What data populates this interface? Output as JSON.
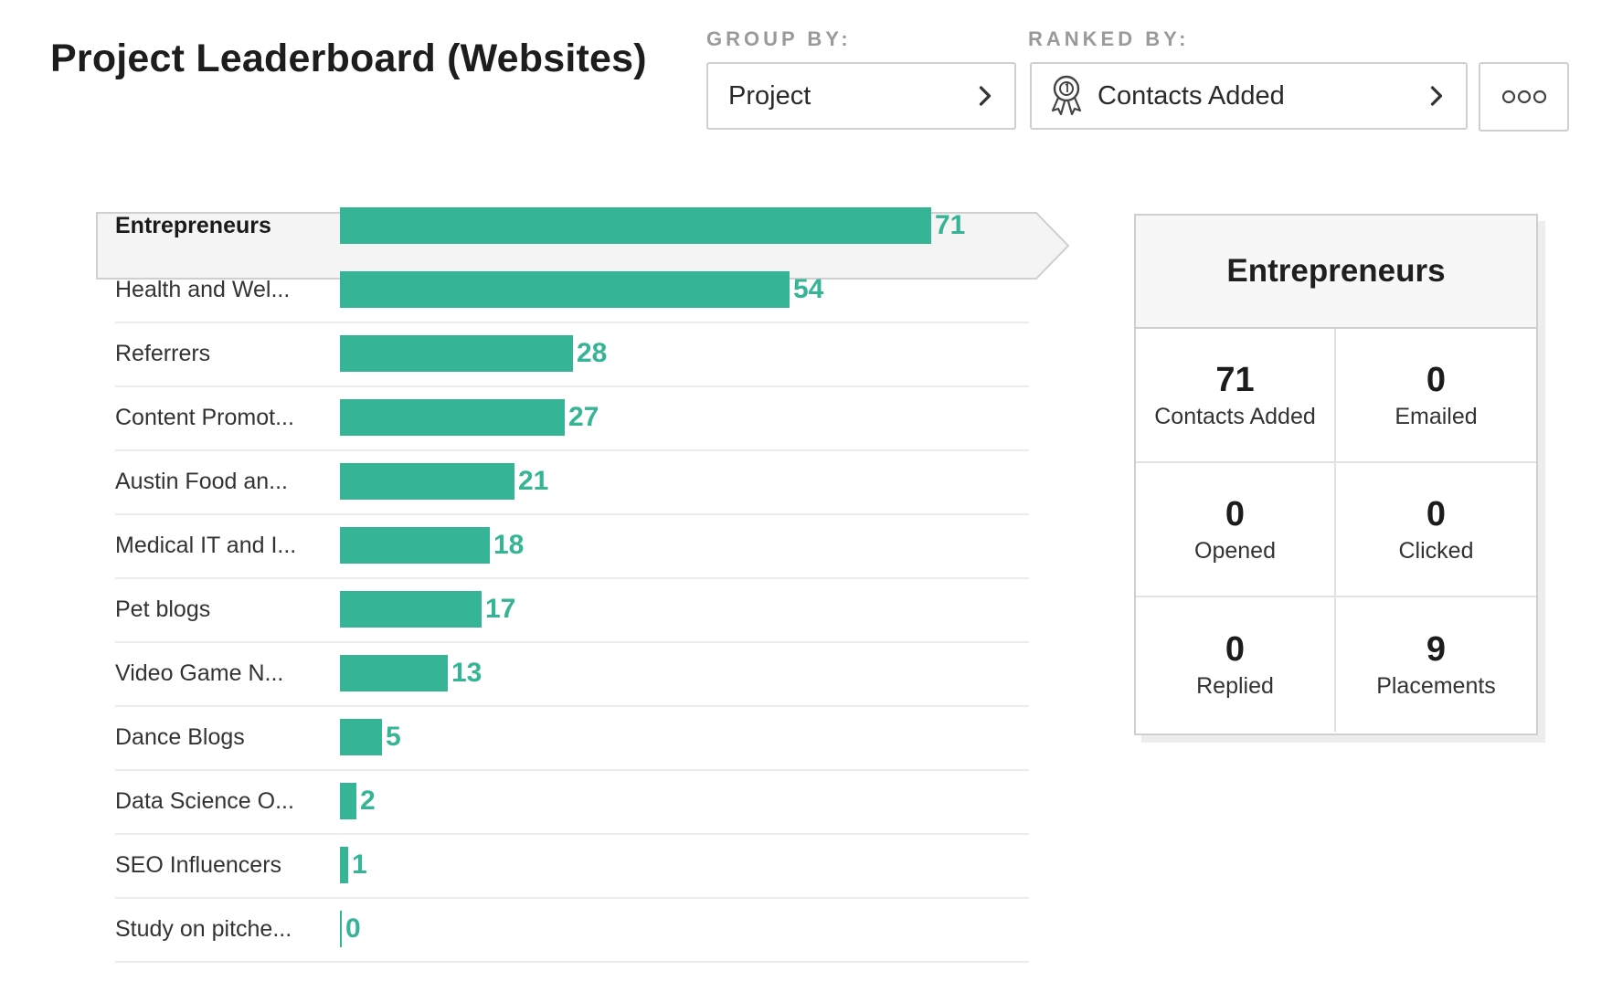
{
  "header": {
    "title": "Project Leaderboard (Websites)"
  },
  "controls": {
    "group_by_label": "GROUP BY:",
    "group_by_value": "Project",
    "ranked_by_label": "RANKED BY:",
    "ranked_by_value": "Contacts Added",
    "ranked_by_icon": "award-ribbon-icon",
    "more_icon": "more-dots-icon"
  },
  "colors": {
    "accent": "#35b596",
    "border": "#cfcfcf"
  },
  "leaderboard": {
    "selected": "Entrepreneurs",
    "rows": [
      {
        "label": "Entrepreneurs",
        "value": 71
      },
      {
        "label": "Health and Wel...",
        "value": 54
      },
      {
        "label": "Referrers",
        "value": 28
      },
      {
        "label": "Content Promot...",
        "value": 27
      },
      {
        "label": "Austin Food an...",
        "value": 21
      },
      {
        "label": "Medical IT and I...",
        "value": 18
      },
      {
        "label": "Pet blogs",
        "value": 17
      },
      {
        "label": "Video Game N...",
        "value": 13
      },
      {
        "label": "Dance Blogs",
        "value": 5
      },
      {
        "label": "Data Science O...",
        "value": 2
      },
      {
        "label": "SEO Influencers",
        "value": 1
      },
      {
        "label": "Study on pitche...",
        "value": 0
      }
    ]
  },
  "chart_data": {
    "type": "bar",
    "orientation": "horizontal",
    "categories": [
      "Entrepreneurs",
      "Health and Wel...",
      "Referrers",
      "Content Promot...",
      "Austin Food an...",
      "Medical IT and I...",
      "Pet blogs",
      "Video Game N...",
      "Dance Blogs",
      "Data Science O...",
      "SEO Influencers",
      "Study on pitche..."
    ],
    "values": [
      71,
      54,
      28,
      27,
      21,
      18,
      17,
      13,
      5,
      2,
      1,
      0
    ],
    "title": "",
    "xlabel": "",
    "ylabel": "",
    "grid": false,
    "legend": "none"
  },
  "detail": {
    "title": "Entrepreneurs",
    "stats": [
      {
        "value": "71",
        "label": "Contacts Added"
      },
      {
        "value": "0",
        "label": "Emailed"
      },
      {
        "value": "0",
        "label": "Opened"
      },
      {
        "value": "0",
        "label": "Clicked"
      },
      {
        "value": "0",
        "label": "Replied"
      },
      {
        "value": "9",
        "label": "Placements"
      }
    ]
  }
}
